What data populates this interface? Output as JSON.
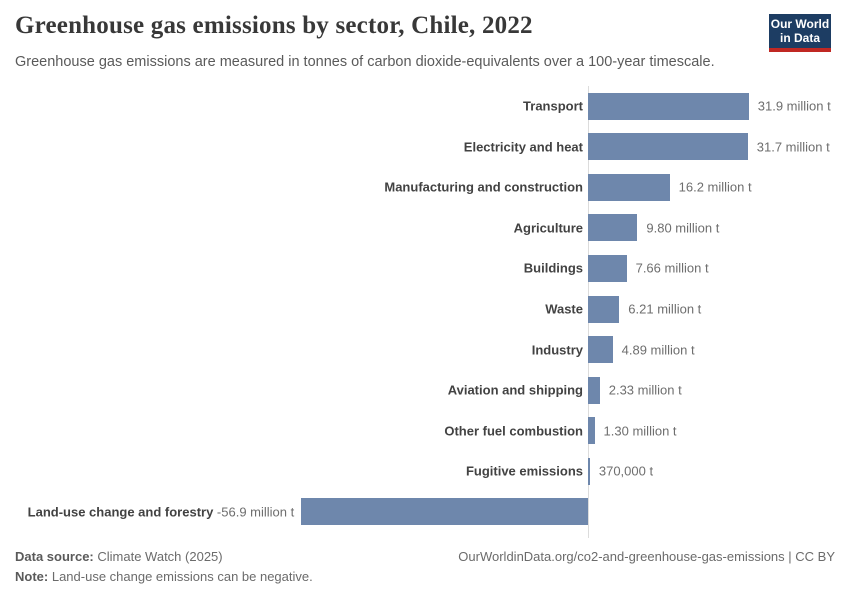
{
  "header": {
    "title": "Greenhouse gas emissions by sector, Chile, 2022",
    "subtitle": "Greenhouse gas emissions are measured in tonnes of carbon dioxide-equivalents over a 100-year timescale.",
    "logo": {
      "line1": "Our World",
      "line2": "in Data"
    }
  },
  "chart_data": {
    "type": "bar",
    "orientation": "horizontal",
    "title": "Greenhouse gas emissions by sector, Chile, 2022",
    "unit": "tonnes of carbon dioxide-equivalents (100-year timescale)",
    "categories": [
      "Transport",
      "Electricity and heat",
      "Manufacturing and construction",
      "Agriculture",
      "Buildings",
      "Waste",
      "Industry",
      "Aviation and shipping",
      "Other fuel combustion",
      "Fugitive emissions",
      "Land-use change and forestry"
    ],
    "values_million_t": [
      31.9,
      31.7,
      16.2,
      9.8,
      7.66,
      6.21,
      4.89,
      2.33,
      1.3,
      0.37,
      -56.9
    ],
    "value_labels": [
      "31.9 million t",
      "31.7 million t",
      "16.2 million t",
      "9.80 million t",
      "7.66 million t",
      "6.21 million t",
      "4.89 million t",
      "2.33 million t",
      "1.30 million t",
      "370,000 t",
      "-56.9 million t"
    ],
    "xlim_million_t": [
      -56.9,
      31.9
    ],
    "grid": false,
    "legend": "none",
    "bar_color": "#6e87ac",
    "axis_color": "#dcdcdc"
  },
  "footer": {
    "data_source_label": "Data source:",
    "data_source_value": "Climate Watch (2025)",
    "citation": "OurWorldinData.org/co2-and-greenhouse-gas-emissions | CC BY",
    "note_label": "Note:",
    "note_value": "Land-use change emissions can be negative."
  },
  "colors": {
    "bar": "#6e87ac",
    "axis": "#dcdcdc",
    "logo_background": "#1d3d63",
    "logo_accent": "#c02823",
    "title_text": "#383838",
    "subtitle_text": "#5a5a5a",
    "sector_label_text": "#424242",
    "value_label_text": "#6e6e6e",
    "footer_text": "#6b6b6b"
  }
}
